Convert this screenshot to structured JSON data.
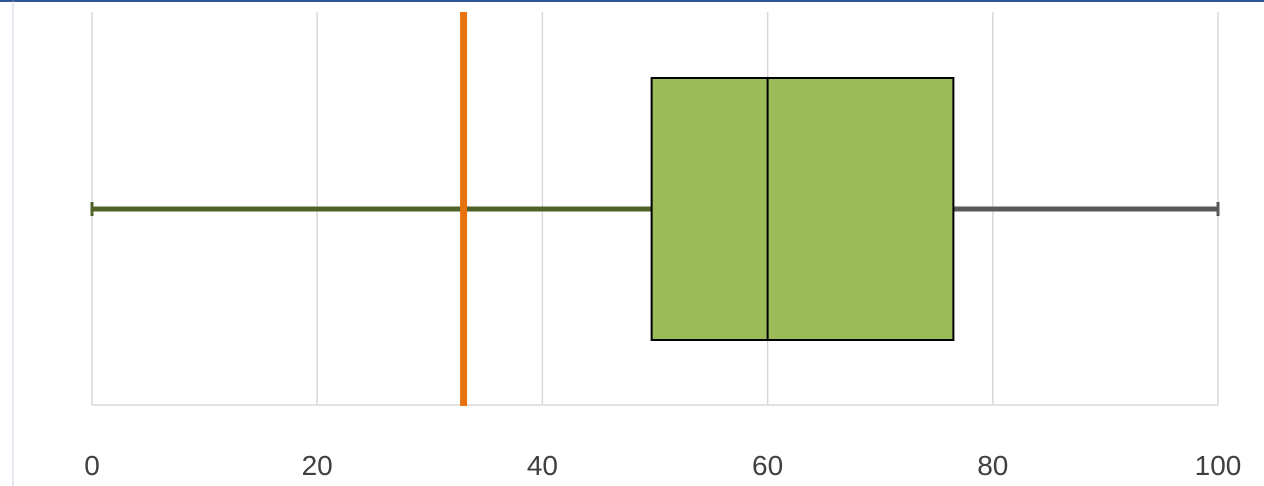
{
  "chart_data": {
    "type": "boxplot",
    "orientation": "horizontal",
    "xlim": [
      0,
      100
    ],
    "x_ticks": [
      "0",
      "20",
      "40",
      "60",
      "80",
      "100"
    ],
    "grid": true,
    "title": "",
    "xlabel": "",
    "ylabel": "",
    "box": {
      "min": 0,
      "q1": 49.7,
      "median": 60,
      "q3": 76.5,
      "max": 100
    },
    "reference_line": {
      "value": 33,
      "color": "#e8720c"
    },
    "colors": {
      "box_fill": "#9bbb59",
      "box_stroke": "#000000",
      "lower_whisker": "#4f6228",
      "upper_whisker": "#595959",
      "grid": "#d9d9d9",
      "frame": "#2f5597"
    }
  }
}
